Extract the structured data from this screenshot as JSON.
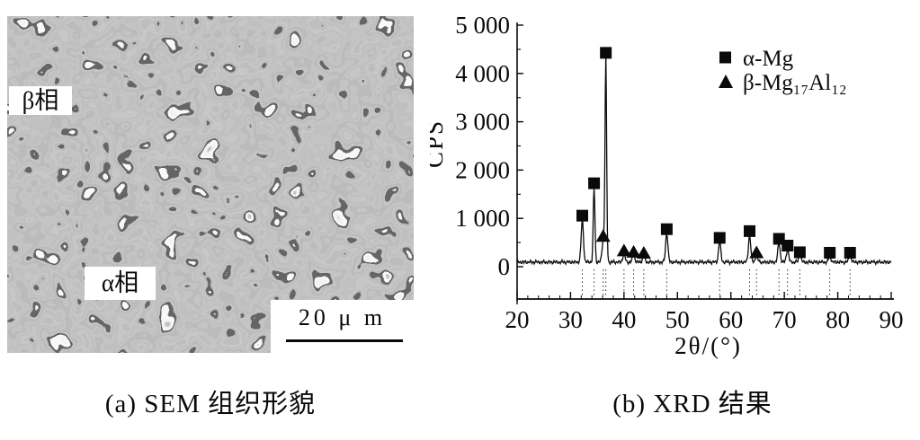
{
  "page": {
    "background": "#ffffff",
    "ink": "#0a0a0a"
  },
  "panel_a": {
    "caption": "(a) SEM 组织形貌",
    "beta_phase_label": "β相",
    "alpha_phase_label": "α相",
    "scale_bar_text": "20 μ m"
  },
  "panel_b": {
    "caption": "(b) XRD 结果"
  },
  "chart_data": {
    "type": "line",
    "title": "",
    "xlabel": "2θ/(°)",
    "ylabel": "CPS",
    "xlim": [
      20,
      90
    ],
    "ylim": [
      0,
      5000
    ],
    "grid": false,
    "legend_position": "top-right",
    "x_ticks": [
      {
        "value": 20,
        "label": "20"
      },
      {
        "value": 30,
        "label": "30"
      },
      {
        "value": 40,
        "label": "40"
      },
      {
        "value": 50,
        "label": "50"
      },
      {
        "value": 60,
        "label": "60"
      },
      {
        "value": 70,
        "label": "70"
      },
      {
        "value": 80,
        "label": "80"
      },
      {
        "value": 90,
        "label": "90"
      }
    ],
    "y_ticks": [
      {
        "value": 0,
        "label": "0"
      },
      {
        "value": 1000,
        "label": "1 000"
      },
      {
        "value": 2000,
        "label": "2 000"
      },
      {
        "value": 3000,
        "label": "3 000"
      },
      {
        "value": 4000,
        "label": "4 000"
      },
      {
        "value": 5000,
        "label": "5 000"
      }
    ],
    "baseline_cps": 95,
    "legend": [
      {
        "marker": "square",
        "phase": "alpha",
        "label": "α-Mg"
      },
      {
        "marker": "triangle",
        "phase": "beta",
        "label": "β-Mg₁₇Al₁₂"
      }
    ],
    "peaks": [
      {
        "two_theta": 32.2,
        "cps": 880,
        "phase": "alpha"
      },
      {
        "two_theta": 34.4,
        "cps": 1550,
        "phase": "alpha"
      },
      {
        "two_theta": 36.1,
        "cps": 450,
        "phase": "beta"
      },
      {
        "two_theta": 36.6,
        "cps": 4250,
        "phase": "alpha"
      },
      {
        "two_theta": 40.0,
        "cps": 180,
        "phase": "beta"
      },
      {
        "two_theta": 41.8,
        "cps": 150,
        "phase": "beta"
      },
      {
        "two_theta": 43.7,
        "cps": 130,
        "phase": "beta"
      },
      {
        "two_theta": 48.0,
        "cps": 600,
        "phase": "alpha"
      },
      {
        "two_theta": 57.9,
        "cps": 420,
        "phase": "alpha"
      },
      {
        "two_theta": 63.5,
        "cps": 560,
        "phase": "alpha"
      },
      {
        "two_theta": 64.8,
        "cps": 140,
        "phase": "beta"
      },
      {
        "two_theta": 69.0,
        "cps": 400,
        "phase": "alpha"
      },
      {
        "two_theta": 70.6,
        "cps": 260,
        "phase": "alpha"
      },
      {
        "two_theta": 72.9,
        "cps": 150,
        "phase": "alpha"
      },
      {
        "two_theta": 78.5,
        "cps": 140,
        "phase": "alpha"
      },
      {
        "two_theta": 82.3,
        "cps": 140,
        "phase": "alpha"
      }
    ]
  }
}
